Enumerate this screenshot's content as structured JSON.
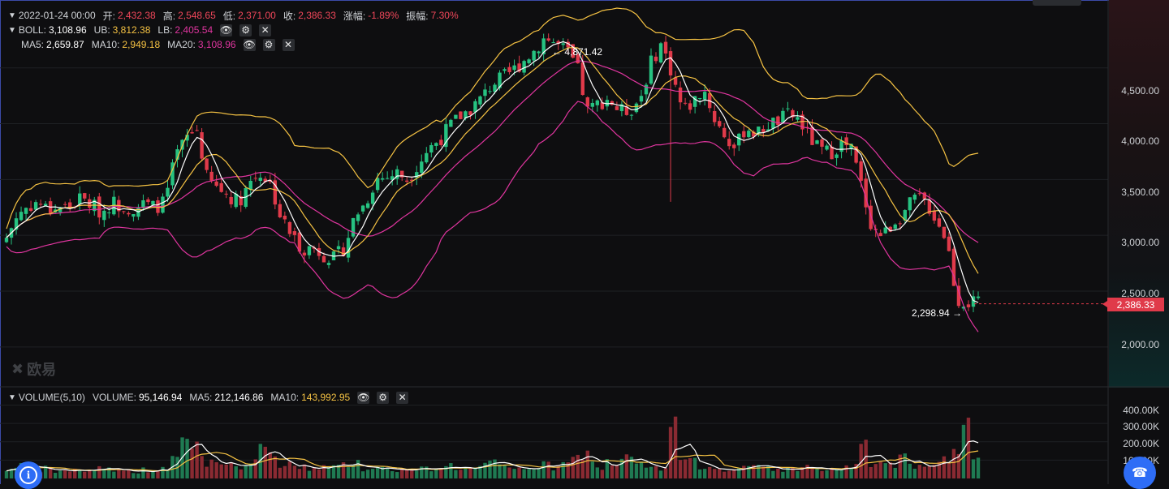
{
  "colors": {
    "up": "#26c281",
    "down": "#e03a4a",
    "ma5": "#ffffff",
    "ma10": "#f5c243",
    "ma20": "#e0359f",
    "grid": "#1f2124",
    "bg": "#0e0e10"
  },
  "header": {
    "ohlc": {
      "datetime": "2022-01-24 00:00",
      "open_label": "开:",
      "open": "2,432.38",
      "high_label": "高:",
      "high": "2,548.65",
      "low_label": "低:",
      "low": "2,371.00",
      "close_label": "收:",
      "close": "2,386.33",
      "change_label": "涨幅:",
      "change": "-1.89%",
      "amplitude_label": "振幅:",
      "amplitude": "7.30%"
    },
    "boll": {
      "label": "BOLL:",
      "value": "3,108.96",
      "ub_label": "UB:",
      "ub": "3,812.38",
      "lb_label": "LB:",
      "lb": "2,405.54"
    },
    "ma": {
      "ma5_label": "MA5:",
      "ma5": "2,659.87",
      "ma10_label": "MA10:",
      "ma10": "2,949.18",
      "ma20_label": "MA20:",
      "ma20": "3,108.96"
    }
  },
  "volume_header": {
    "label": "VOLUME(5,10)",
    "volume_label": "VOLUME:",
    "volume": "95,146.94",
    "ma5_label": "MA5:",
    "ma5": "212,146.86",
    "ma10_label": "MA10:",
    "ma10": "143,992.95"
  },
  "price_axis": [
    "4,500.00",
    "4,000.00",
    "3,500.00",
    "3,000.00",
    "2,500.00",
    "2,000.00"
  ],
  "volume_axis": [
    "400.00K",
    "300.00K",
    "200.00K",
    "100.00K"
  ],
  "current_price": "2,386.33",
  "annotations": {
    "high": "4,871.42",
    "low": "2,298.94"
  },
  "watermark": "欧易",
  "icons": {
    "eye": "eye-icon",
    "settings": "gear-icon",
    "close": "close-icon",
    "collapse": "chevron-down-icon",
    "info": "info-icon",
    "support": "headset-icon"
  },
  "chart_data": {
    "type": "candlestick",
    "price_range": [
      1650,
      5050
    ],
    "volume_range": [
      0,
      460000
    ],
    "close_path": [
      2980,
      3180,
      3260,
      3300,
      3220,
      3260,
      3250,
      3330,
      3280,
      3200,
      3300,
      3260,
      3240,
      3280,
      3250,
      3300,
      3700,
      3870,
      3960,
      3500,
      3420,
      3360,
      3300,
      3480,
      3560,
      3460,
      3150,
      3000,
      2880,
      2890,
      2830,
      2790,
      2890,
      3180,
      3290,
      3510,
      3520,
      3560,
      3500,
      3650,
      3780,
      3860,
      3980,
      4070,
      4140,
      4230,
      4360,
      4410,
      4480,
      4570,
      4660,
      4780,
      4710,
      4650,
      4510,
      4110,
      4180,
      4230,
      4110,
      4120,
      4230,
      4540,
      4720,
      4450,
      4120,
      4190,
      4320,
      4050,
      3890,
      3770,
      3980,
      3900,
      3990,
      4020,
      4080,
      4040,
      3880,
      3760,
      3740,
      3820,
      3770,
      3420,
      3050,
      3000,
      3120,
      3210,
      3330,
      3300,
      3150,
      2970,
      2420,
      2400,
      2386
    ],
    "volume": [
      55,
      90,
      70,
      48,
      60,
      42,
      50,
      45,
      55,
      70,
      60,
      48,
      45,
      52,
      48,
      55,
      120,
      240,
      200,
      90,
      110,
      95,
      80,
      70,
      160,
      150,
      70,
      80,
      70,
      60,
      75,
      65,
      90,
      110,
      60,
      60,
      65,
      55,
      50,
      58,
      60,
      70,
      80,
      65,
      60,
      75,
      90,
      70,
      55,
      68,
      70,
      80,
      65,
      85,
      120,
      140,
      60,
      100,
      95,
      120,
      90,
      60,
      55,
      330,
      120,
      95,
      80,
      70,
      60,
      55,
      60,
      80,
      70,
      60,
      55,
      65,
      70,
      55,
      50,
      60,
      75,
      180,
      90,
      95,
      80,
      120,
      70,
      60,
      80,
      110,
      200,
      460,
      95
    ]
  }
}
